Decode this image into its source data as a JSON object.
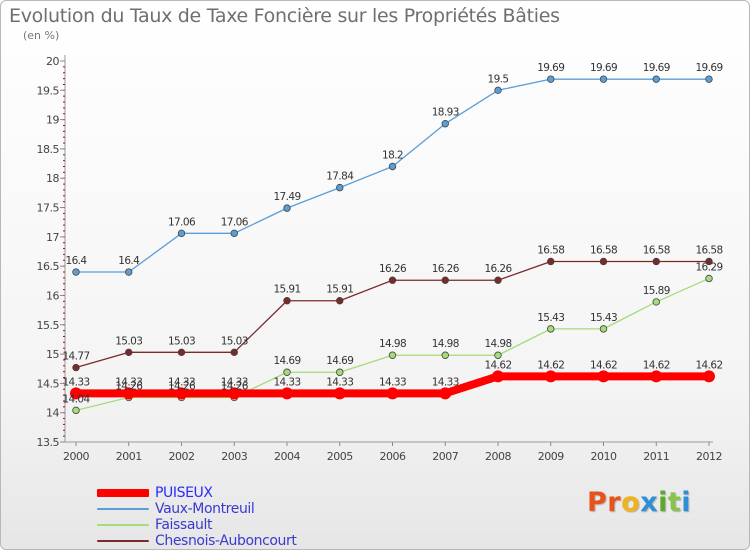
{
  "title": "Evolution du Taux de Taxe Foncière sur les Propriétés Bâties",
  "subtitle": "(en %)",
  "logo": {
    "letters": [
      "P",
      "r",
      "o",
      "x",
      "i",
      "t",
      "i"
    ],
    "colors": [
      "#e8521b",
      "#e8521b",
      "#f2b21a",
      "#2e8fd8",
      "#5aaa2c",
      "#8bc34a",
      "#2e8fd8"
    ]
  },
  "chart_data": {
    "type": "line",
    "title": "Evolution du Taux de Taxe Foncière sur les Propriétés Bâties",
    "ylabel": "(en %)",
    "x": [
      "2000",
      "2001",
      "2002",
      "2003",
      "2004",
      "2005",
      "2006",
      "2007",
      "2008",
      "2009",
      "2010",
      "2011",
      "2012"
    ],
    "ylim": [
      13.5,
      20
    ],
    "yticks": [
      "13.5",
      "14",
      "14.5",
      "15",
      "15.5",
      "16",
      "16.5",
      "17",
      "17.5",
      "18",
      "18.5",
      "19",
      "19.5",
      "20"
    ],
    "grid": false,
    "legend_position": "bottom-left",
    "series": [
      {
        "name": "PUISEUX",
        "color": "#ff0000",
        "values": [
          14.33,
          14.33,
          14.33,
          14.33,
          14.33,
          14.33,
          14.33,
          14.33,
          14.62,
          14.62,
          14.62,
          14.62,
          14.62
        ],
        "labels": [
          "14.33",
          "14.33",
          "14.33",
          "14.33",
          "14.33",
          "14.33",
          "14.33",
          "14.33",
          "14.62",
          "14.62",
          "14.62",
          "14.62",
          "14.62"
        ]
      },
      {
        "name": "Vaux-Montreuil",
        "color": "#5b9ed6",
        "values": [
          16.4,
          16.4,
          17.06,
          17.06,
          17.49,
          17.84,
          18.2,
          18.93,
          19.5,
          19.69,
          19.69,
          19.69,
          19.69
        ],
        "labels": [
          "16.4",
          "16.4",
          "17.06",
          "17.06",
          "17.49",
          "17.84",
          "18.2",
          "18.93",
          "19.5",
          "19.69",
          "19.69",
          "19.69",
          "19.69"
        ]
      },
      {
        "name": "Faissault",
        "color": "#a3dc7a",
        "values": [
          14.04,
          14.26,
          14.26,
          14.26,
          14.69,
          14.69,
          14.98,
          14.98,
          14.98,
          15.43,
          15.43,
          15.89,
          16.29
        ],
        "labels": [
          "14.04",
          "14.26",
          "14.26",
          "14.26",
          "14.69",
          "14.69",
          "14.98",
          "14.98",
          "14.98",
          "15.43",
          "15.43",
          "15.89",
          "16.29"
        ]
      },
      {
        "name": "Chesnois-Auboncourt",
        "color": "#7b2a2a",
        "values": [
          14.77,
          15.03,
          15.03,
          15.03,
          15.91,
          15.91,
          16.26,
          16.26,
          16.26,
          16.58,
          16.58,
          16.58,
          16.58
        ],
        "labels": [
          "14.77",
          "15.03",
          "15.03",
          "15.03",
          "15.91",
          "15.91",
          "16.26",
          "16.26",
          "16.26",
          "16.58",
          "16.58",
          "16.58",
          "16.58"
        ]
      }
    ]
  }
}
